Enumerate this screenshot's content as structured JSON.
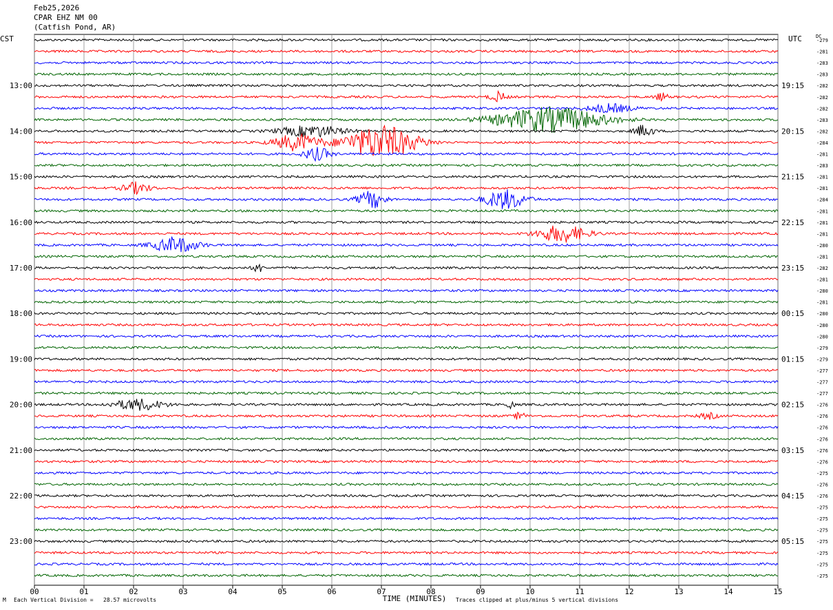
{
  "header": {
    "date": "Feb25,2026",
    "station": "CPAR EHZ NM 00",
    "location": "(Catfish Pond, AR)"
  },
  "left_zone": "CST",
  "right_zone": "UTC",
  "dc_header": "DC",
  "footer": {
    "scale": "Each Vertical Division =   28.57 microvolts",
    "clip": "Traces clipped at plus/minus 5 vertical divisions",
    "corner_mark": "M"
  },
  "colors": {
    "cycle": [
      "#000000",
      "#ff0000",
      "#0000ff",
      "#006400"
    ],
    "grid": "#888888"
  },
  "chart_data": {
    "type": "helicorder",
    "xlabel": "TIME (MINUTES)",
    "x_ticks": [
      "00",
      "01",
      "02",
      "03",
      "04",
      "05",
      "06",
      "07",
      "08",
      "09",
      "10",
      "11",
      "12",
      "13",
      "14",
      "15"
    ],
    "xlim": [
      0,
      15
    ],
    "left_hour_labels": [
      "13:00",
      "14:00",
      "15:00",
      "16:00",
      "17:00",
      "18:00",
      "19:00",
      "20:00",
      "21:00",
      "22:00",
      "23:00"
    ],
    "right_hour_labels": [
      "19:15",
      "20:15",
      "21:15",
      "22:15",
      "23:15",
      "00:15",
      "01:15",
      "02:15",
      "03:15",
      "04:15",
      "05:15"
    ],
    "hour_label_first_trace": 4,
    "dc_offsets": [
      "-279",
      "-281",
      "-283",
      "-283",
      "-282",
      "-282",
      "-282",
      "-283",
      "-282",
      "-284",
      "-281",
      "-283",
      "-281",
      "-281",
      "-284",
      "-281",
      "-281",
      "-281",
      "-280",
      "-281",
      "-282",
      "-281",
      "-280",
      "-281",
      "-280",
      "-280",
      "-280",
      "-279",
      "-279",
      "-277",
      "-277",
      "-277",
      "-276",
      "-276",
      "-276",
      "-276",
      "-276",
      "-276",
      "-275",
      "-276",
      "-276",
      "-275",
      "-275",
      "-275",
      "-275",
      "-275",
      "-275",
      "-275"
    ],
    "events": [
      {
        "trace": 5,
        "minute": 9.35,
        "dur": 0.35,
        "amp": 7
      },
      {
        "trace": 5,
        "minute": 12.65,
        "dur": 0.3,
        "amp": 5
      },
      {
        "trace": 6,
        "minute": 11.6,
        "dur": 1.0,
        "amp": 6
      },
      {
        "trace": 7,
        "minute": 10.4,
        "dur": 2.4,
        "amp": 18
      },
      {
        "trace": 8,
        "minute": 12.3,
        "dur": 0.4,
        "amp": 9
      },
      {
        "trace": 8,
        "minute": 5.6,
        "dur": 1.4,
        "amp": 8
      },
      {
        "trace": 9,
        "minute": 5.3,
        "dur": 1.0,
        "amp": 12
      },
      {
        "trace": 9,
        "minute": 7.0,
        "dur": 1.6,
        "amp": 24
      },
      {
        "trace": 10,
        "minute": 5.7,
        "dur": 0.6,
        "amp": 9
      },
      {
        "trace": 13,
        "minute": 2.05,
        "dur": 0.6,
        "amp": 8
      },
      {
        "trace": 14,
        "minute": 6.8,
        "dur": 0.6,
        "amp": 12
      },
      {
        "trace": 14,
        "minute": 9.5,
        "dur": 0.9,
        "amp": 14
      },
      {
        "trace": 17,
        "minute": 10.65,
        "dur": 1.1,
        "amp": 12
      },
      {
        "trace": 18,
        "minute": 2.85,
        "dur": 1.0,
        "amp": 11
      },
      {
        "trace": 20,
        "minute": 4.5,
        "dur": 0.2,
        "amp": 8
      },
      {
        "trace": 32,
        "minute": 2.1,
        "dur": 1.1,
        "amp": 8
      },
      {
        "trace": 32,
        "minute": 9.6,
        "dur": 0.15,
        "amp": 8
      },
      {
        "trace": 33,
        "minute": 9.8,
        "dur": 0.2,
        "amp": 7
      },
      {
        "trace": 33,
        "minute": 13.6,
        "dur": 0.4,
        "amp": 4
      }
    ]
  }
}
